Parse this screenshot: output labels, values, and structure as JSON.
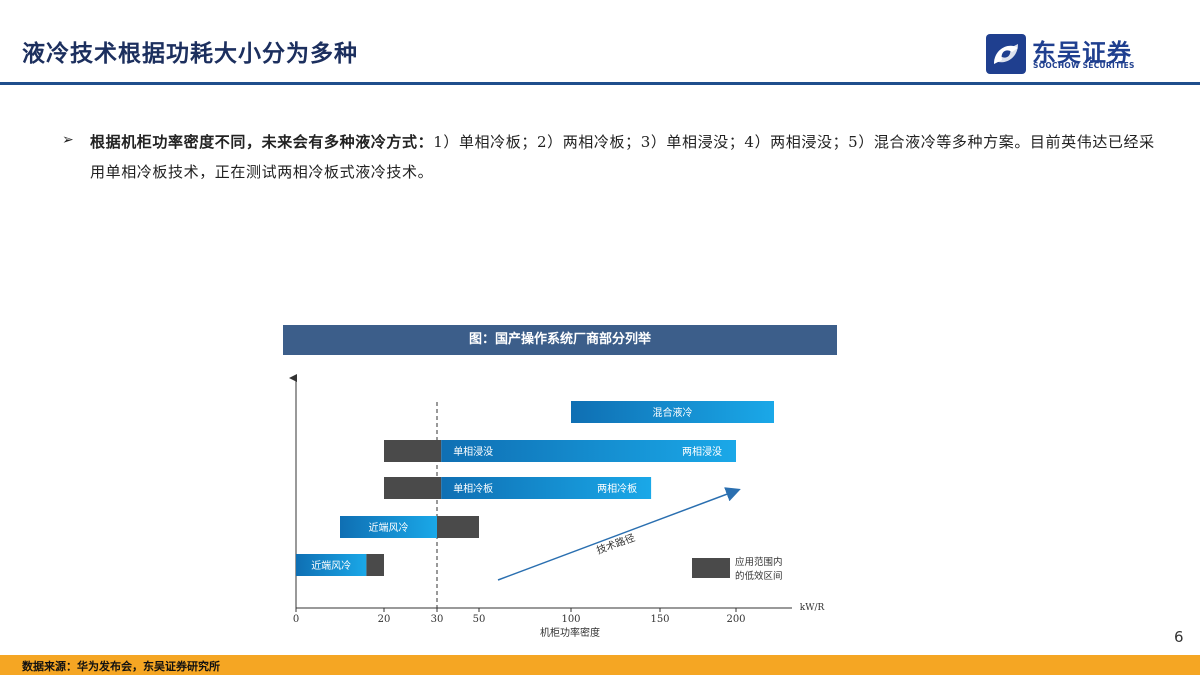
{
  "header": {
    "title": "液冷技术根据功耗大小分为多种",
    "logo_cn": "东吴证券",
    "logo_en": "SOOCHOW SECURITIES"
  },
  "body": {
    "bullet": "➢",
    "bold_part": "根据机柜功率密度不同，未来会有多种液冷方式：",
    "rest": "1）单相冷板；2）两相冷板；3）单相浸没；4）两相浸没；5）混合液冷等多种方案。目前英伟达已经采用单相冷板技术，正在测试两相冷板式液冷技术。"
  },
  "figure": {
    "title": "图：国产操作系统厂商部分列举"
  },
  "chart_data": {
    "type": "bar",
    "orientation": "horizontal",
    "xlabel": "机柜功率密度",
    "x_unit": "kW/R",
    "x_ticks": [
      0,
      20,
      30,
      50,
      100,
      150,
      200
    ],
    "reference_line_x": 30,
    "rows": [
      {
        "label": "混合液冷",
        "bars": [
          {
            "start": 100,
            "end": 225,
            "kind": "main"
          }
        ]
      },
      {
        "label": "单相浸没",
        "label2": "两相浸没",
        "bars": [
          {
            "start": 20,
            "end": 32,
            "kind": "low"
          },
          {
            "start": 32,
            "end": 200,
            "kind": "main"
          }
        ]
      },
      {
        "label": "单相冷板",
        "label2": "两相冷板",
        "bars": [
          {
            "start": 20,
            "end": 32,
            "kind": "low"
          },
          {
            "start": 32,
            "end": 145,
            "kind": "main"
          }
        ]
      },
      {
        "label": "近端风冷",
        "bars": [
          {
            "start": 10,
            "end": 30,
            "kind": "main"
          },
          {
            "start": 30,
            "end": 50,
            "kind": "low"
          }
        ]
      },
      {
        "label": "近端风冷",
        "bars": [
          {
            "start": 0,
            "end": 16,
            "kind": "main"
          },
          {
            "start": 16,
            "end": 20,
            "kind": "low"
          }
        ]
      }
    ],
    "arrow_label": "技术路径",
    "legend": {
      "label": "应用范围内的低效区间",
      "label_line1": "应用范围内",
      "label_line2": "的低效区间",
      "placement": "bottom-right"
    },
    "colors": {
      "main_start": "#0f6fb3",
      "main_end": "#1aa8e8",
      "low": "#4a4a4a",
      "arrow": "#2a6fb0"
    }
  },
  "footer": {
    "source": "数据来源：华为发布会，东吴证券研究所",
    "page": "6"
  }
}
